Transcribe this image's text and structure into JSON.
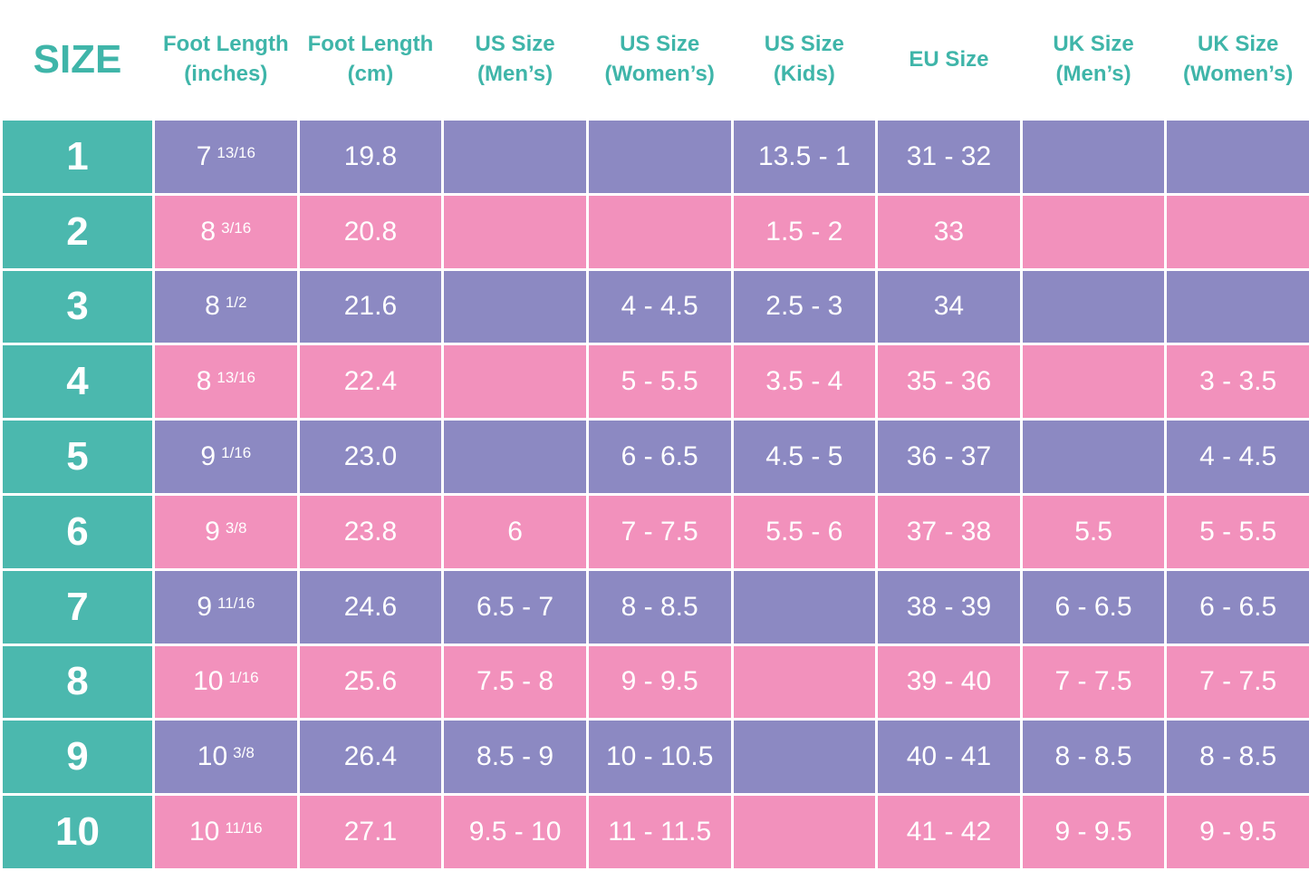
{
  "header": {
    "columns": [
      [
        "SIZE"
      ],
      [
        "Foot Length",
        "(inches)"
      ],
      [
        "Foot Length",
        "(cm)"
      ],
      [
        "US Size",
        "(Men’s)"
      ],
      [
        "US Size",
        "(Women’s)"
      ],
      [
        "US Size",
        "(Kids)"
      ],
      [
        "EU Size"
      ],
      [
        "UK Size",
        "(Men’s)"
      ],
      [
        "UK Size",
        "(Women’s)"
      ]
    ]
  },
  "table": {
    "rows": [
      [
        "1",
        {
          "whole": "7",
          "fraction": "13/16"
        },
        "19.8",
        null,
        null,
        "13.5 - 1",
        "31 - 32",
        null,
        null
      ],
      [
        "2",
        {
          "whole": "8",
          "fraction": "3/16"
        },
        "20.8",
        null,
        null,
        "1.5 - 2",
        "33",
        null,
        null
      ],
      [
        "3",
        {
          "whole": "8",
          "fraction": "1/2"
        },
        "21.6",
        null,
        "4 - 4.5",
        "2.5 - 3",
        "34",
        null,
        null
      ],
      [
        "4",
        {
          "whole": "8",
          "fraction": "13/16"
        },
        "22.4",
        null,
        "5 - 5.5",
        "3.5 - 4",
        "35 - 36",
        null,
        "3 - 3.5"
      ],
      [
        "5",
        {
          "whole": "9",
          "fraction": "1/16"
        },
        "23.0",
        null,
        "6 - 6.5",
        "4.5 - 5",
        "36 - 37",
        null,
        "4 - 4.5"
      ],
      [
        "6",
        {
          "whole": "9",
          "fraction": "3/8"
        },
        "23.8",
        "6",
        "7 - 7.5",
        "5.5 - 6",
        "37 - 38",
        "5.5",
        "5 - 5.5"
      ],
      [
        "7",
        {
          "whole": "9",
          "fraction": "11/16"
        },
        "24.6",
        "6.5 - 7",
        "8 - 8.5",
        null,
        "38 - 39",
        "6 - 6.5",
        "6 - 6.5"
      ],
      [
        "8",
        {
          "whole": "10",
          "fraction": "1/16"
        },
        "25.6",
        "7.5 - 8",
        "9 - 9.5",
        null,
        "39 - 40",
        "7 - 7.5",
        "7 - 7.5"
      ],
      [
        "9",
        {
          "whole": "10",
          "fraction": "3/8"
        },
        "26.4",
        "8.5 - 9",
        "10 - 10.5",
        null,
        "40 - 41",
        "8 - 8.5",
        "8 - 8.5"
      ],
      [
        "10",
        {
          "whole": "10",
          "fraction": "11/16"
        },
        "27.1",
        "9.5 - 10",
        "11 - 11.5",
        null,
        "41 - 42",
        "9 - 9.5",
        "9 - 9.5"
      ]
    ]
  }
}
